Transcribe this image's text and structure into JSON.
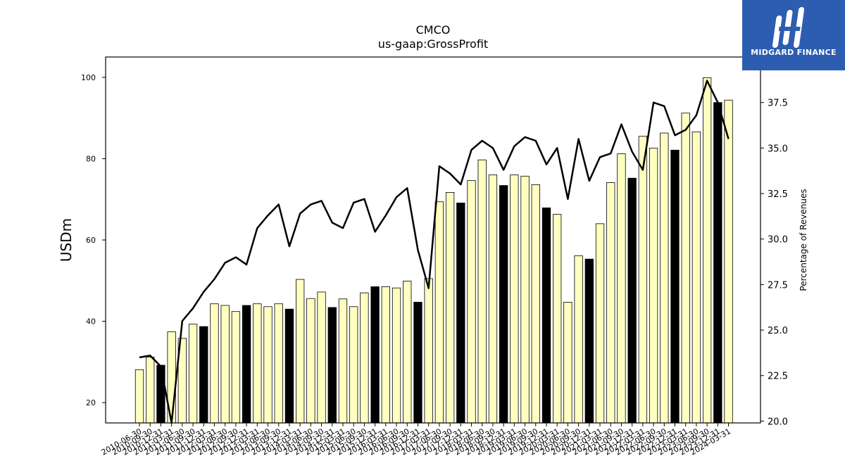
{
  "chart_data": {
    "type": "bar",
    "title": "CMCO",
    "subtitle": "us-gaap:GrossProfit",
    "ylabel": "USDm",
    "y2label": "Percentage of Revenues",
    "ylim": [
      15,
      105
    ],
    "y2lim": [
      19.9,
      40.0
    ],
    "yticks": [
      20,
      40,
      60,
      80,
      100
    ],
    "y2ticks": [
      "20.0",
      "22.5",
      "25.0",
      "27.5",
      "30.0",
      "32.5",
      "35.0",
      "37.5"
    ],
    "grid": false,
    "colors": {
      "quarter_bar": "#ffffc0",
      "fiscal_year_bar": "#000000",
      "line": "#000000"
    },
    "categories": [
      "2010-06-30",
      "2010-09-30",
      "2010-12-31",
      "2011-03-31",
      "2011-06-30",
      "2011-09-30",
      "2011-12-31",
      "2012-03-31",
      "2012-06-30",
      "2012-09-30",
      "2012-12-31",
      "2013-03-31",
      "2013-06-30",
      "2013-09-30",
      "2013-12-31",
      "2014-03-31",
      "2014-06-30",
      "2014-09-30",
      "2014-12-31",
      "2015-03-31",
      "2015-06-30",
      "2015-09-30",
      "2015-12-31",
      "2016-03-31",
      "2016-06-30",
      "2016-09-30",
      "2016-12-31",
      "2017-03-31",
      "2017-06-30",
      "2017-09-30",
      "2017-12-31",
      "2018-03-31",
      "2018-06-30",
      "2018-09-30",
      "2018-12-31",
      "2019-03-31",
      "2019-06-30",
      "2019-09-30",
      "2019-12-31",
      "2020-03-31",
      "2020-06-30",
      "2020-09-30",
      "2020-12-31",
      "2021-03-31",
      "2021-06-30",
      "2021-09-30",
      "2021-12-31",
      "2022-03-31",
      "2022-06-30",
      "2022-09-30",
      "2022-12-31",
      "2023-03-31",
      "2023-06-30",
      "2023-09-30",
      "2023-12-31",
      "2024-03-31"
    ],
    "series": [
      {
        "type": "bar",
        "values": [
          28.1,
          31.2,
          29.2,
          37.4,
          35.8,
          39.3,
          38.7,
          44.3,
          43.9,
          42.4,
          43.9,
          44.3,
          43.6,
          44.3,
          43.0,
          50.3,
          45.6,
          47.2,
          43.4,
          45.5,
          43.6,
          47.0,
          48.5,
          48.5,
          48.2,
          49.9,
          44.7,
          50.5,
          69.4,
          71.7,
          69.1,
          74.6,
          79.7,
          76.0,
          73.4,
          76.0,
          75.7,
          73.6,
          67.9,
          66.3,
          44.7,
          56.1,
          55.3,
          64.0,
          74.1,
          81.2,
          75.2,
          85.5,
          82.6,
          86.3,
          82.1,
          91.2,
          86.6,
          99.9,
          93.8,
          94.4
        ],
        "fiscal_year_end": [
          false,
          false,
          true,
          false,
          false,
          false,
          true,
          false,
          false,
          false,
          true,
          false,
          false,
          false,
          true,
          false,
          false,
          false,
          true,
          false,
          false,
          false,
          true,
          false,
          false,
          false,
          true,
          false,
          false,
          false,
          true,
          false,
          false,
          false,
          true,
          false,
          false,
          false,
          true,
          false,
          false,
          false,
          true,
          false,
          false,
          false,
          true,
          false,
          false,
          false,
          true,
          false,
          false,
          false,
          true,
          false
        ]
      },
      {
        "type": "line",
        "axis": "right",
        "values": [
          23.5,
          23.6,
          23.0,
          19.9,
          25.5,
          26.2,
          27.1,
          27.8,
          28.7,
          29.0,
          28.6,
          30.6,
          31.3,
          31.9,
          29.6,
          31.4,
          31.9,
          32.1,
          30.9,
          30.6,
          32.0,
          32.2,
          30.4,
          31.3,
          32.3,
          32.8,
          29.4,
          27.3,
          34.0,
          33.6,
          33.0,
          34.9,
          35.4,
          35.0,
          33.8,
          35.1,
          35.6,
          35.4,
          34.1,
          35.0,
          32.2,
          35.5,
          33.2,
          34.5,
          34.7,
          36.3,
          34.8,
          33.8,
          37.5,
          37.3,
          35.7,
          36.0,
          36.8,
          38.7,
          37.5,
          35.5
        ]
      }
    ]
  },
  "logo": {
    "text": "MIDGARD FINANCE"
  }
}
